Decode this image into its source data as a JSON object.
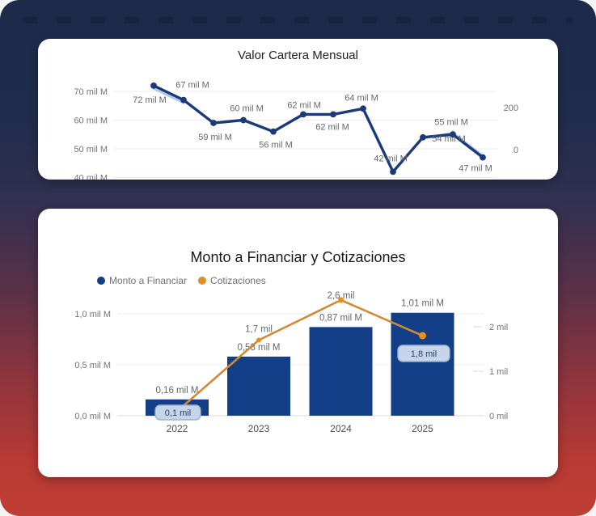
{
  "colors": {
    "background_gradient_top": "#1d2a4a",
    "background_gradient_bottom": "#bf3f35",
    "card_background": "#ffffff",
    "grid_line": "#ededed",
    "axis_text": "#70757a",
    "data_label_text": "#63686d",
    "tooltip_background": "#c7d5eb",
    "tooltip_border": "#9db1d2",
    "tooltip_text": "#2b4068"
  },
  "chart_data": [
    {
      "type": "line",
      "title": "Valor Cartera Mensual",
      "unit": "mil M",
      "series": [
        {
          "name": "Valor Cartera",
          "color": "#1b3a78",
          "values": [
            72,
            67,
            59,
            60,
            56,
            62,
            62,
            64,
            42,
            54,
            55,
            47
          ],
          "point_labels": [
            "72 mil M",
            "67 mil M",
            "59 mil M",
            "60 mil M",
            "56 mil M",
            "62 mil M",
            "62 mil M",
            "64 mil M",
            "42 mil M",
            "54 mil M",
            "55 mil M",
            "47 mil M"
          ],
          "label_offsets": [
            [
              -5,
              17
            ],
            [
              11,
              -19
            ],
            [
              2,
              17
            ],
            [
              4,
              -15
            ],
            [
              3,
              16
            ],
            [
              1,
              -12
            ],
            [
              -1,
              15
            ],
            [
              -2,
              -14
            ],
            [
              -3,
              -17
            ],
            [
              32,
              1
            ],
            [
              -2,
              -16
            ],
            [
              -9,
              13
            ]
          ]
        },
        {
          "name": "overlay-highlight",
          "color": "#b7c9e5",
          "values": [
            71,
            66,
            null,
            null,
            null,
            null,
            null,
            null,
            null,
            53.7,
            55.5,
            47.6
          ],
          "marker_index": 10
        }
      ],
      "y_axis_left": {
        "tick_labels": [
          "70 mil M",
          "60 mil M",
          "50 mil M",
          "40 mil M"
        ],
        "tick_values": [
          70,
          60,
          50,
          40
        ]
      },
      "y_axis_right": {
        "tick_labels": [
          "200",
          "0"
        ]
      },
      "grid": true,
      "legend_shown": false
    },
    {
      "type": "bar+line",
      "title": "Monto a Financiar y Cotizaciones",
      "categories": [
        "2022",
        "2023",
        "2024",
        "2025"
      ],
      "legend": [
        {
          "label": "Monto a Financiar",
          "color": "#123f87"
        },
        {
          "label": "Cotizaciones",
          "color": "#dd8f2e"
        }
      ],
      "bars": {
        "name": "Monto a Financiar",
        "axis": "left",
        "color": "#123f87",
        "values": [
          0.16,
          0.58,
          0.87,
          1.01
        ],
        "value_labels": [
          "0,16 mil M",
          "0,58 mil M",
          "0,87 mil M",
          "1,01 mil M"
        ]
      },
      "line": {
        "name": "Cotizaciones",
        "axis": "right",
        "color": "#cf8b36",
        "marker_color": "#ec8d1b",
        "values": [
          0.1,
          1.7,
          2.6,
          1.8
        ],
        "value_labels": [
          "0,1 mil",
          "1,7 mil",
          "2,6 mil",
          "1,8 mil"
        ],
        "tooltip_indices": [
          0,
          3
        ]
      },
      "y_axis_left": {
        "tick_labels": [
          "1,0 mil M",
          "0,5 mil M",
          "0,0 mil M"
        ],
        "tick_values": [
          1.0,
          0.5,
          0.0
        ]
      },
      "y_axis_right": {
        "tick_labels": [
          "2 mil",
          "1 mil",
          "0 mil"
        ],
        "tick_values": [
          2,
          1,
          0
        ]
      },
      "grid": true,
      "legend_position": "top-left"
    }
  ]
}
